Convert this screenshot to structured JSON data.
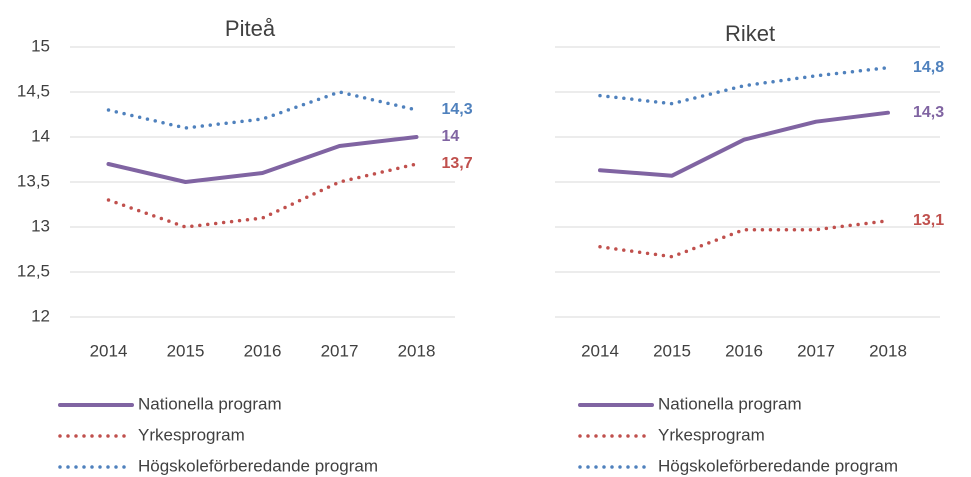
{
  "chart_data": [
    {
      "type": "line",
      "title": "Piteå",
      "categories": [
        "2014",
        "2015",
        "2016",
        "2017",
        "2018"
      ],
      "ylim": [
        12,
        15
      ],
      "yticks": [
        12,
        {
          "value": 12.5,
          "label": "12,5"
        },
        13,
        {
          "value": 13.5,
          "label": "13,5"
        },
        14,
        {
          "value": 14.5,
          "label": "14,5"
        },
        15
      ],
      "show_ytick_labels": true,
      "grid": true,
      "series": [
        {
          "name": "Nationella program",
          "color": "#8064a2",
          "style": "solid",
          "values": [
            13.7,
            13.5,
            13.6,
            13.9,
            14.0
          ],
          "value_labels": [
            null,
            null,
            null,
            null,
            "14"
          ]
        },
        {
          "name": "Yrkesprogram",
          "color": "#c0504d",
          "style": "dotted",
          "values": [
            13.3,
            13.0,
            13.1,
            13.5,
            13.7
          ],
          "value_labels": [
            null,
            null,
            null,
            null,
            "13,7"
          ]
        },
        {
          "name": "Högskoleförberedande program",
          "color": "#4f81bd",
          "style": "dotted",
          "values": [
            14.3,
            14.1,
            14.2,
            14.5,
            14.3
          ],
          "value_labels": [
            null,
            null,
            null,
            null,
            "14,3"
          ]
        }
      ]
    },
    {
      "type": "line",
      "title": "Riket",
      "categories": [
        "2014",
        "2015",
        "2016",
        "2017",
        "2018"
      ],
      "ylim": [
        12,
        15
      ],
      "yticks": [
        12,
        12.5,
        13,
        13.5,
        14,
        14.5,
        15
      ],
      "show_ytick_labels": false,
      "grid": true,
      "series": [
        {
          "name": "Nationella program",
          "color": "#8064a2",
          "style": "solid",
          "values": [
            13.63,
            13.57,
            13.97,
            14.17,
            14.27
          ],
          "value_labels": [
            null,
            null,
            null,
            null,
            "14,3"
          ]
        },
        {
          "name": "Yrkesprogram",
          "color": "#c0504d",
          "style": "dotted",
          "values": [
            12.78,
            12.67,
            12.97,
            12.97,
            13.07
          ],
          "value_labels": [
            null,
            null,
            null,
            null,
            "13,1"
          ]
        },
        {
          "name": "Högskoleförberedande program",
          "color": "#4f81bd",
          "style": "dotted",
          "values": [
            14.46,
            14.37,
            14.57,
            14.68,
            14.77
          ],
          "value_labels": [
            null,
            null,
            null,
            null,
            "14,8"
          ]
        }
      ]
    }
  ]
}
